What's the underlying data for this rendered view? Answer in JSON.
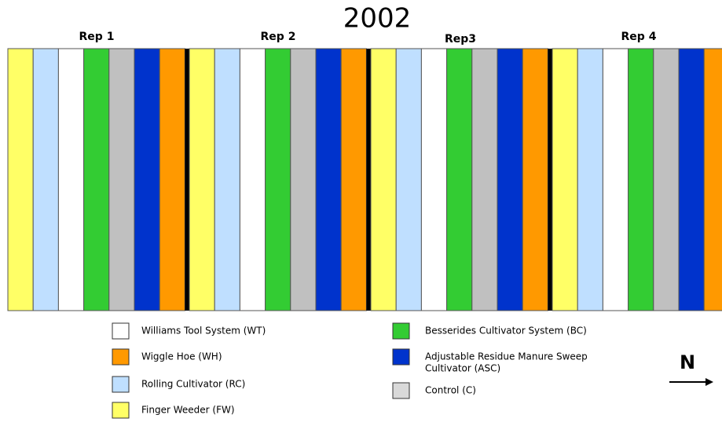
{
  "title": "2002",
  "reps": [
    "Rep 1",
    "Rep 2",
    "Rep3",
    "Rep 4"
  ],
  "legend": [
    {
      "lines": [
        "Williams Tool System (WT)"
      ]
    },
    {
      "lines": [
        "Wiggle Hoe (WH)"
      ]
    },
    {
      "lines": [
        "Rolling Cultivator (RC)"
      ]
    },
    {
      "lines": [
        "Finger Weeder (FW)"
      ]
    },
    {
      "lines": [
        "Besserides Cultivator System (BC)"
      ]
    },
    {
      "lines": [
        "Adjustable Residue Manure Sweep",
        "Cultivator (ASC)"
      ]
    },
    {
      "lines": [
        "Control (C)"
      ]
    }
  ],
  "north": "N"
}
